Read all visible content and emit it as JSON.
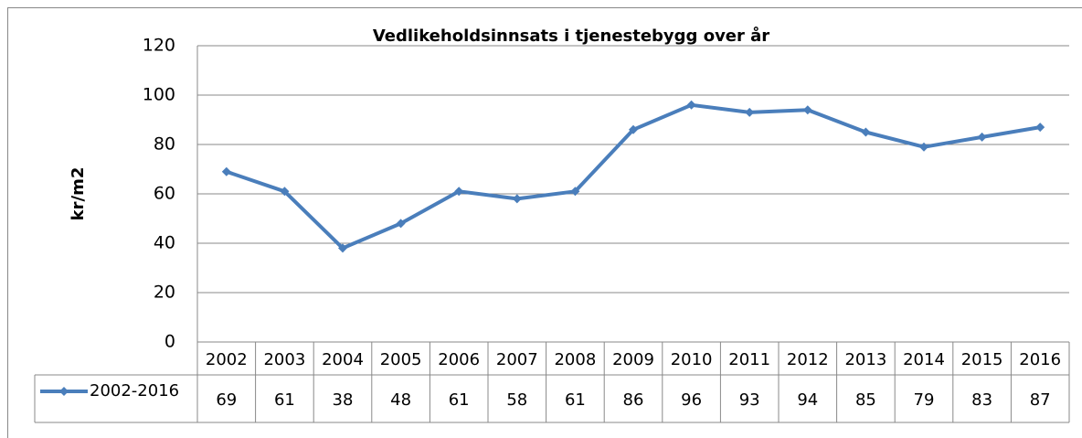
{
  "chart_data": {
    "type": "line",
    "title": "Vedlikeholdsinnsats i tjenestebygg over år",
    "y_label": "kr/m2",
    "categories": [
      "2002",
      "2003",
      "2004",
      "2005",
      "2006",
      "2007",
      "2008",
      "2009",
      "2010",
      "2011",
      "2012",
      "2013",
      "2014",
      "2015",
      "2016"
    ],
    "series": [
      {
        "name": "2002-2016",
        "color": "#4a7ebb",
        "values": [
          69,
          61,
          38,
          48,
          61,
          58,
          61,
          86,
          96,
          93,
          94,
          85,
          79,
          83,
          87
        ]
      }
    ],
    "ylim": [
      0,
      120
    ],
    "yticks": [
      0,
      20,
      40,
      60,
      80,
      100,
      120
    ],
    "grid": true,
    "data_table": true
  }
}
